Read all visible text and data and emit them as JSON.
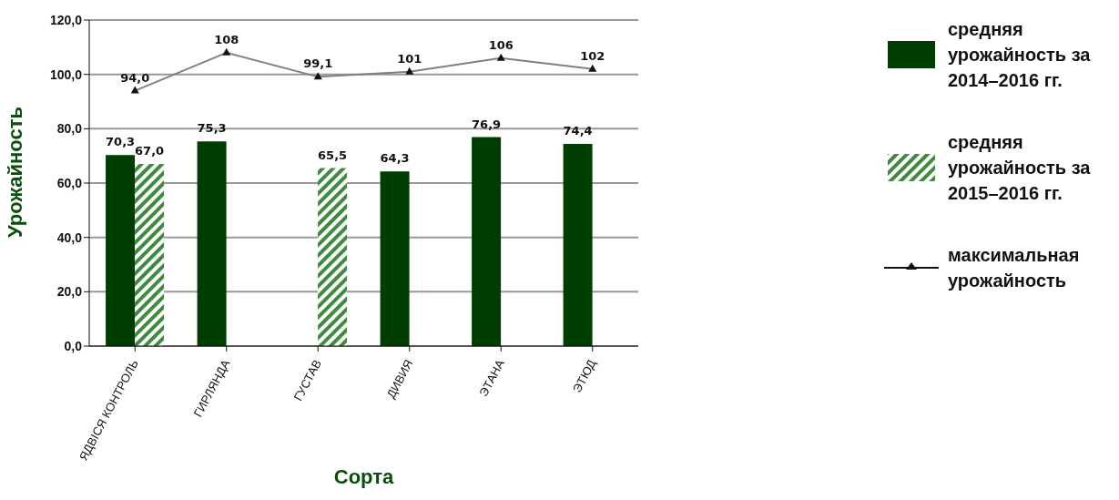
{
  "chart_data": {
    "type": "bar",
    "xlabel": "Сорта",
    "ylabel": "Урожайность",
    "categories": [
      "ЯДВІСЯ КОНТРОЛЬ",
      "ГИРЛЯНДА",
      "ГУСТАВ",
      "ДИВИЯ",
      "ЭТАНА",
      "ЭТЮД"
    ],
    "series": [
      {
        "name": "средняя урожайность за 2014–2016 гг.",
        "color": "#003d00",
        "values": [
          70.3,
          75.3,
          null,
          64.3,
          76.9,
          74.4
        ],
        "value_labels": [
          "70,3",
          "75,3",
          null,
          "64,3",
          "76,9",
          "74,4"
        ]
      },
      {
        "name": "средняя урожайность за 2015–2016 гг.",
        "color": "#3f8a3f",
        "values": [
          67.0,
          null,
          65.5,
          null,
          null,
          null
        ],
        "value_labels": [
          "67,0",
          null,
          "65,5",
          null,
          null,
          null
        ]
      },
      {
        "name": "максимальная урожайность",
        "type": "line",
        "color": "#808080",
        "marker": "triangle",
        "values": [
          94.0,
          108,
          99.1,
          101,
          106,
          102
        ],
        "value_labels": [
          "94,0",
          "108",
          "99,1",
          "101",
          "106",
          "102"
        ]
      }
    ],
    "ylim": [
      0,
      120
    ],
    "yticks": [
      {
        "value": 0,
        "label": "0,0"
      },
      {
        "value": 20,
        "label": "20,0"
      },
      {
        "value": 40,
        "label": "40,0"
      },
      {
        "value": 60,
        "label": "60,0"
      },
      {
        "value": 80,
        "label": "80,0"
      },
      {
        "value": 100,
        "label": "100,0"
      },
      {
        "value": 120,
        "label": "120,0"
      }
    ],
    "grid": "y",
    "legend": "right"
  }
}
